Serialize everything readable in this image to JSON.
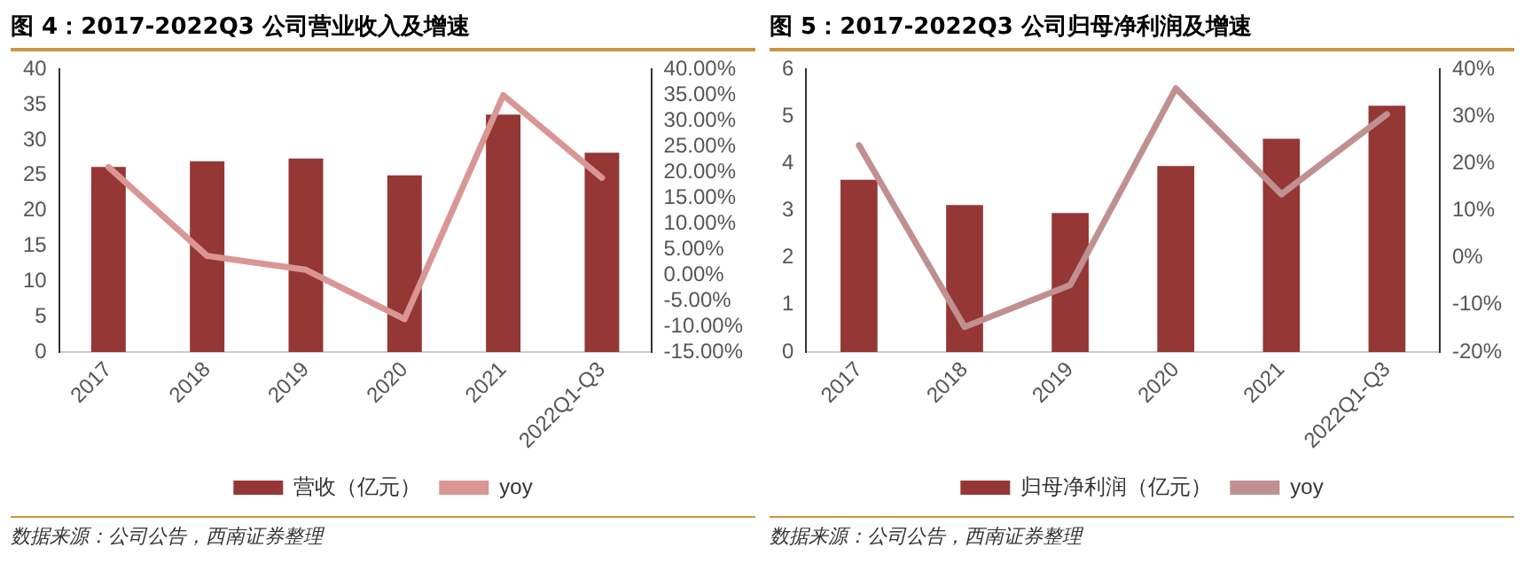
{
  "chart_data": [
    {
      "type": "bar",
      "title": "图 4：2017-2022Q3 公司营业收入及增速",
      "categories": [
        "2017",
        "2018",
        "2019",
        "2020",
        "2021",
        "2022Q1-Q3"
      ],
      "series": [
        {
          "name": "营收（亿元）",
          "color": "#953735",
          "values": [
            26.2,
            27,
            27.4,
            25,
            33.6,
            28.2
          ]
        },
        {
          "name": "yoy",
          "type": "line",
          "axis": "y2",
          "color": "#d99694",
          "values": [
            21,
            3.7,
            1,
            -8.6,
            35,
            18.9
          ]
        }
      ],
      "ylim": [
        0,
        40
      ],
      "yticks": [
        0,
        5,
        10,
        15,
        20,
        25,
        30,
        35,
        40
      ],
      "y2lim": [
        -15,
        40
      ],
      "y2ticks": [
        {
          "value": -15,
          "label": "-15.00%"
        },
        {
          "value": -10,
          "label": "-10.00%"
        },
        {
          "value": -5,
          "label": "-5.00%"
        },
        {
          "value": 0,
          "label": "0.00%"
        },
        {
          "value": 5,
          "label": "5.00%"
        },
        {
          "value": 10,
          "label": "10.00%"
        },
        {
          "value": 15,
          "label": "15.00%"
        },
        {
          "value": 20,
          "label": "20.00%"
        },
        {
          "value": 25,
          "label": "25.00%"
        },
        {
          "value": 30,
          "label": "30.00%"
        },
        {
          "value": 35,
          "label": "35.00%"
        },
        {
          "value": 40,
          "label": "40.00%"
        }
      ],
      "grid": false,
      "legend": "bottom",
      "marker": "none",
      "annotations": [
        "数据来源：公司公告，西南证券整理"
      ]
    },
    {
      "type": "bar",
      "title": "图 5：2017-2022Q3 公司归母净利润及增速",
      "categories": [
        "2017",
        "2018",
        "2019",
        "2020",
        "2021",
        "2022Q1-Q3"
      ],
      "series": [
        {
          "name": "归母净利润（亿元）",
          "color": "#953735",
          "values": [
            3.66,
            3.12,
            2.95,
            3.95,
            4.53,
            5.23
          ]
        },
        {
          "name": "yoy",
          "type": "line",
          "axis": "y2",
          "color": "#c09090",
          "values": [
            23.9,
            -14.7,
            -5.8,
            36,
            13.5,
            30.5
          ]
        }
      ],
      "ylim": [
        0,
        6
      ],
      "yticks": [
        0,
        1,
        2,
        3,
        4,
        5,
        6
      ],
      "y2lim": [
        -20,
        40
      ],
      "y2ticks": [
        {
          "value": -20,
          "label": "-20%"
        },
        {
          "value": -10,
          "label": "-10%"
        },
        {
          "value": 0,
          "label": "0%"
        },
        {
          "value": 10,
          "label": "10%"
        },
        {
          "value": 20,
          "label": "20%"
        },
        {
          "value": 30,
          "label": "30%"
        },
        {
          "value": 40,
          "label": "40%"
        }
      ],
      "grid": false,
      "legend": "bottom",
      "marker": "none",
      "annotations": [
        "数据来源：公司公告，西南证券整理"
      ]
    }
  ]
}
